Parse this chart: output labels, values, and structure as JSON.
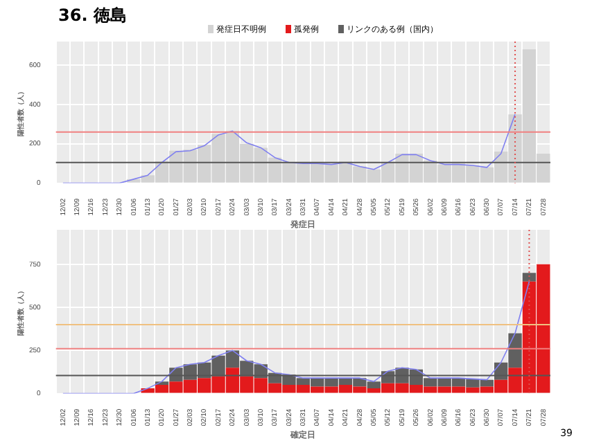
{
  "chart_data": [
    {
      "type": "bar",
      "title": "36. 徳島",
      "xlabel": "発症日",
      "ylabel": "陽性者数（人）",
      "categories": [
        "12/02",
        "12/09",
        "12/16",
        "12/23",
        "12/30",
        "01/06",
        "01/13",
        "01/20",
        "01/27",
        "02/03",
        "02/10",
        "02/17",
        "02/24",
        "03/03",
        "03/10",
        "03/17",
        "03/24",
        "03/31",
        "04/07",
        "04/14",
        "04/21",
        "04/28",
        "05/05",
        "05/12",
        "05/19",
        "05/26",
        "06/02",
        "06/09",
        "06/16",
        "06/23",
        "06/30",
        "07/07",
        "07/14",
        "07/21",
        "07/28"
      ],
      "series": [
        {
          "name": "発症日不明例",
          "color": "#d3d3d3",
          "values": [
            0,
            0,
            0,
            0,
            0,
            20,
            40,
            110,
            165,
            170,
            195,
            250,
            265,
            200,
            180,
            130,
            105,
            100,
            100,
            95,
            110,
            85,
            70,
            105,
            150,
            150,
            115,
            95,
            100,
            90,
            80,
            160,
            350,
            680,
            150
          ]
        },
        {
          "type": "line",
          "color": "#8080f0",
          "values": [
            0,
            0,
            0,
            0,
            0,
            20,
            40,
            105,
            160,
            165,
            190,
            245,
            265,
            205,
            180,
            130,
            105,
            100,
            100,
            95,
            105,
            85,
            70,
            105,
            145,
            145,
            115,
            95,
            95,
            90,
            80,
            150,
            350,
            null,
            null
          ]
        }
      ],
      "ylim": [
        0,
        720
      ],
      "yticks": [
        0,
        200,
        400,
        600
      ],
      "grid": true,
      "legend": "top",
      "ref_lines": [
        {
          "axis": "y",
          "value": 260,
          "color": "#f08080"
        },
        {
          "axis": "y",
          "value": 105,
          "color": "#555555"
        },
        {
          "axis": "x",
          "value": "07/14",
          "color": "#e05050",
          "line_style": "dotted"
        }
      ]
    },
    {
      "type": "bar",
      "stacked": true,
      "xlabel": "確定日",
      "ylabel": "陽性者数（人）",
      "categories": [
        "12/02",
        "12/09",
        "12/16",
        "12/23",
        "12/30",
        "01/06",
        "01/13",
        "01/20",
        "01/27",
        "02/03",
        "02/10",
        "02/17",
        "02/24",
        "03/03",
        "03/10",
        "03/17",
        "03/24",
        "03/31",
        "04/07",
        "04/14",
        "04/21",
        "04/28",
        "05/05",
        "05/12",
        "05/19",
        "05/26",
        "06/02",
        "06/09",
        "06/16",
        "06/23",
        "06/30",
        "07/07",
        "07/14",
        "07/21",
        "07/28"
      ],
      "series": [
        {
          "name": "孤発例",
          "color": "#e31a1c",
          "values": [
            0,
            0,
            0,
            0,
            0,
            0,
            30,
            50,
            70,
            80,
            90,
            100,
            150,
            100,
            90,
            60,
            50,
            50,
            40,
            40,
            50,
            40,
            30,
            60,
            60,
            50,
            40,
            40,
            40,
            35,
            40,
            80,
            150,
            650,
            750
          ]
        },
        {
          "name": "リンクのある例（国内）",
          "color": "#606060",
          "values": [
            0,
            0,
            0,
            0,
            0,
            0,
            0,
            20,
            80,
            90,
            90,
            120,
            100,
            90,
            80,
            60,
            60,
            40,
            50,
            50,
            40,
            50,
            40,
            70,
            90,
            90,
            50,
            50,
            50,
            50,
            40,
            100,
            200,
            50,
            0
          ]
        },
        {
          "type": "line",
          "color": "#8080f0",
          "values": [
            0,
            0,
            0,
            0,
            0,
            0,
            30,
            70,
            150,
            170,
            180,
            220,
            250,
            190,
            170,
            120,
            110,
            90,
            90,
            90,
            90,
            90,
            70,
            130,
            150,
            140,
            90,
            90,
            90,
            85,
            80,
            180,
            350,
            650,
            null
          ]
        }
      ],
      "ylim": [
        0,
        950
      ],
      "yticks": [
        0,
        250,
        500,
        750
      ],
      "grid": true,
      "legend": "top",
      "ref_lines": [
        {
          "axis": "y",
          "value": 400,
          "color": "#f0c080"
        },
        {
          "axis": "y",
          "value": 260,
          "color": "#f08080"
        },
        {
          "axis": "y",
          "value": 105,
          "color": "#555555"
        },
        {
          "axis": "x",
          "value": "07/21",
          "color": "#e05050",
          "line_style": "dotted"
        }
      ],
      "annotations": [
        "39"
      ]
    }
  ]
}
